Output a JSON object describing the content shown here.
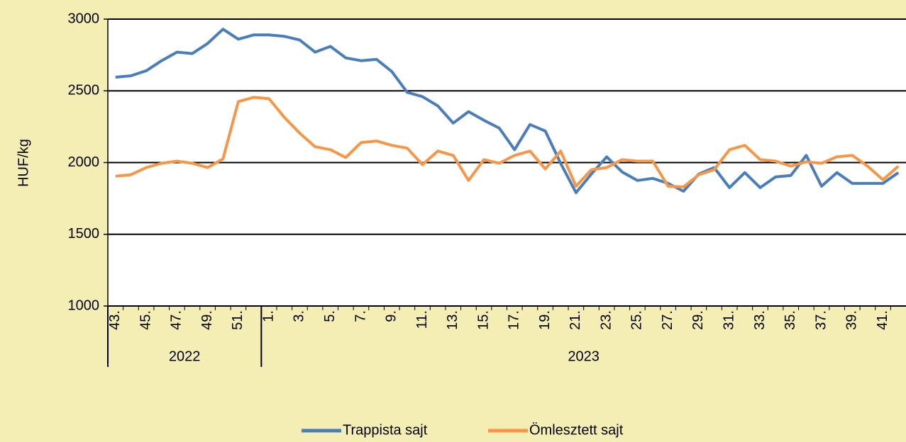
{
  "chart_data": {
    "type": "line",
    "y_label": "HUF/kg",
    "groups": [
      {
        "label": "2022",
        "categories": [
          "43.",
          null,
          "45.",
          null,
          "47.",
          null,
          "49.",
          null,
          "51.",
          null
        ]
      },
      {
        "label": "2023",
        "categories": [
          "1.",
          null,
          "3.",
          null,
          "5.",
          null,
          "7.",
          null,
          "9.",
          null,
          "11.",
          null,
          "13.",
          null,
          "15.",
          null,
          "17.",
          null,
          "19.",
          null,
          "21.",
          null,
          "23.",
          null,
          "25.",
          null,
          "27.",
          null,
          "29.",
          null,
          "31.",
          null,
          "33.",
          null,
          "35.",
          null,
          "37.",
          null,
          "39.",
          null,
          "41.",
          null
        ]
      }
    ],
    "series": [
      {
        "name": "Trappista sajt",
        "color": "#4a7ebb",
        "values": [
          2595,
          2605,
          2640,
          2710,
          2770,
          2760,
          2830,
          2930,
          2860,
          2890,
          2890,
          2880,
          2855,
          2770,
          2810,
          2730,
          2710,
          2720,
          2635,
          2490,
          2460,
          2395,
          2275,
          2355,
          2295,
          2240,
          2090,
          2265,
          2220,
          1995,
          1790,
          1920,
          2040,
          1935,
          1875,
          1890,
          1855,
          1800,
          1920,
          1965,
          1825,
          1930,
          1825,
          1900,
          1910,
          2050,
          1835,
          1930,
          1855,
          1855,
          1855,
          1930
        ]
      },
      {
        "name": "Ömlesztett sajt",
        "color": "#f79646",
        "values": [
          1905,
          1915,
          1965,
          1995,
          2010,
          1995,
          1965,
          2025,
          2425,
          2455,
          2445,
          2315,
          2205,
          2110,
          2090,
          2035,
          2140,
          2150,
          2120,
          2100,
          1985,
          2080,
          2050,
          1875,
          2020,
          1995,
          2050,
          2080,
          1955,
          2080,
          1835,
          1950,
          1965,
          2020,
          2010,
          2010,
          1835,
          1830,
          1915,
          1950,
          2090,
          2120,
          2020,
          2010,
          1975,
          2005,
          1995,
          2040,
          2050,
          1975,
          1880,
          1975
        ]
      }
    ],
    "ylim": [
      1000,
      3000
    ],
    "yticks": [
      1000,
      1500,
      2000,
      2500,
      3000
    ],
    "grid": true,
    "legend": "bottom"
  }
}
